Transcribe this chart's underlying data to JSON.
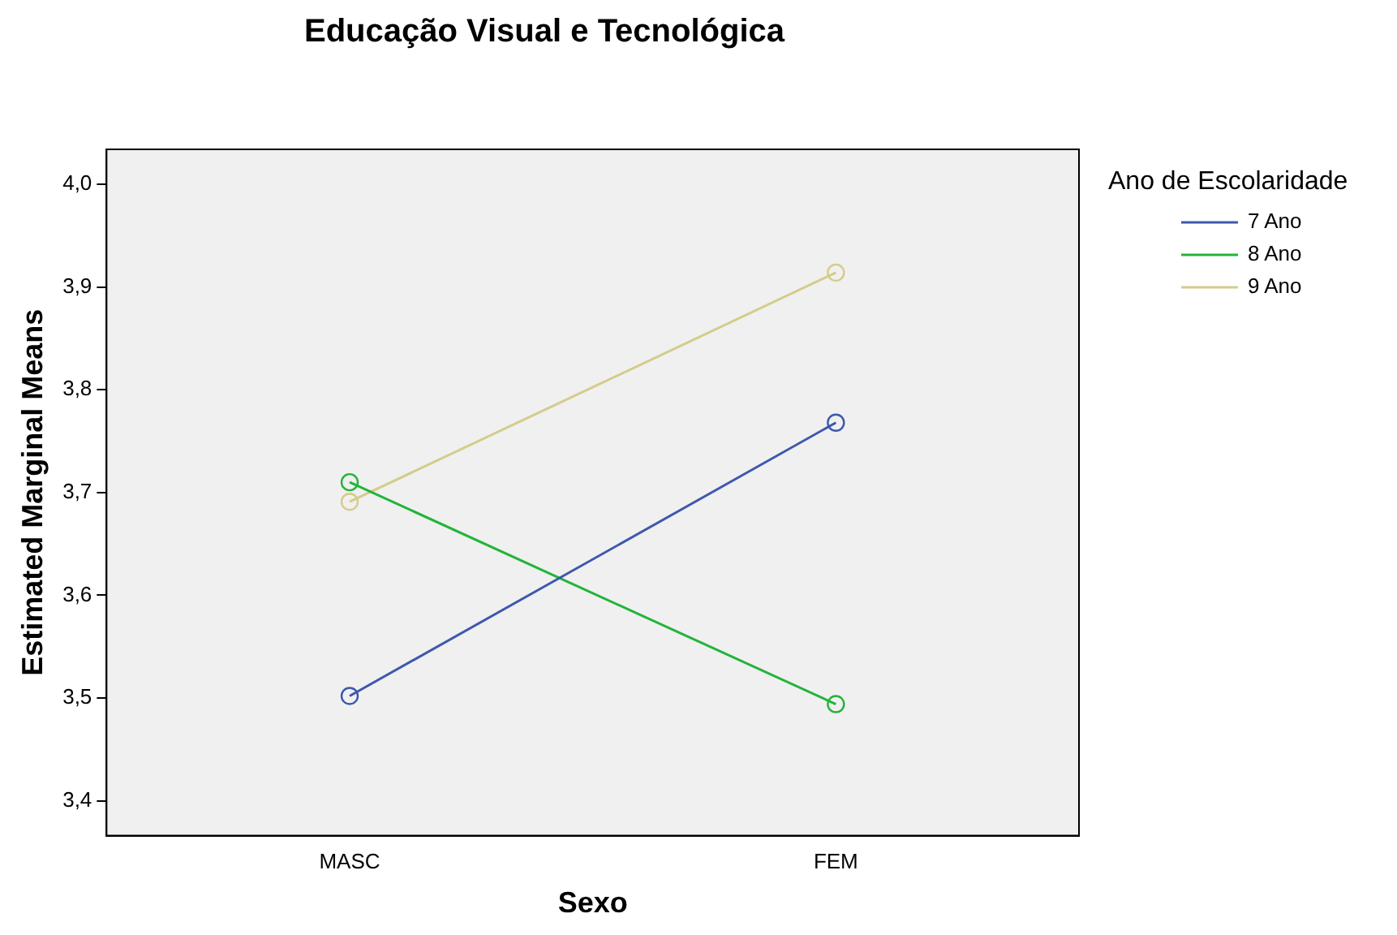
{
  "chart_data": {
    "type": "line",
    "title": "Educação Visual e Tecnológica",
    "xlabel": "Sexo",
    "ylabel": "Estimated Marginal Means",
    "legend_title": "Ano de Escolaridade",
    "legend": "top right",
    "marker": "circle",
    "line_style": "solid",
    "grid": false,
    "categories": [
      "MASC",
      "FEM"
    ],
    "series": [
      {
        "name": "7 Ano",
        "color": "#3e58ac",
        "values": [
          3.502,
          3.768
        ]
      },
      {
        "name": "8 Ano",
        "color": "#22b43a",
        "values": [
          3.71,
          3.494
        ]
      },
      {
        "name": "9 Ano",
        "color": "#d4cc8a",
        "values": [
          3.691,
          3.914
        ]
      }
    ],
    "ylim": [
      3.366,
      4.034
    ],
    "yticks": [
      {
        "value": 3.4,
        "label": "3,4"
      },
      {
        "value": 3.5,
        "label": "3,5"
      },
      {
        "value": 3.6,
        "label": "3,6"
      },
      {
        "value": 3.7,
        "label": "3,7"
      },
      {
        "value": 3.8,
        "label": "3,8"
      },
      {
        "value": 3.9,
        "label": "3,9"
      },
      {
        "value": 4.0,
        "label": "4,0"
      }
    ]
  }
}
